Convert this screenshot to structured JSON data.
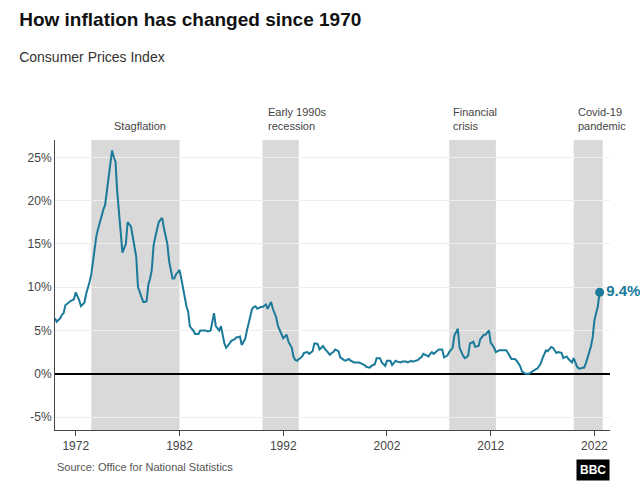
{
  "chart_data": {
    "type": "line",
    "title": "How inflation has changed since 1970",
    "subtitle": "Consumer Prices Index",
    "source": "Source: Office for National Statistics",
    "logo": "BBC",
    "annotation": "9.4%",
    "color": "#1a7a9a",
    "grid": true,
    "xlim": [
      1970,
      2023.5
    ],
    "xticks": [
      1972,
      1982,
      1992,
      2002,
      2012,
      2022
    ],
    "ylim": [
      -6.5,
      27
    ],
    "yticks": [
      {
        "value": -5,
        "label": "-5%"
      },
      {
        "value": 0,
        "label": "0%"
      },
      {
        "value": 5,
        "label": "5%"
      },
      {
        "value": 10,
        "label": "10%"
      },
      {
        "value": 15,
        "label": "15%"
      },
      {
        "value": 20,
        "label": "20%"
      },
      {
        "value": 25,
        "label": "25%"
      }
    ],
    "shaded_regions": [
      {
        "start": 1973.5,
        "end": 1982.0,
        "label": "Stagflation",
        "label_x": 1975.5,
        "color": "#d9d9d9"
      },
      {
        "start": 1990.0,
        "end": 1993.5,
        "label": "Early 1990s\nrecession",
        "label_x": 1990.3,
        "color": "#d9d9d9"
      },
      {
        "start": 2008.0,
        "end": 2012.5,
        "label": "Financial\ncrisis",
        "label_x": 2008.2,
        "color": "#d9d9d9"
      },
      {
        "start": 2020.0,
        "end": 2022.8,
        "label": "Covid-19\npandemic",
        "label_x": 2020.2,
        "color": "#d9d9d9"
      }
    ],
    "x": [
      1970.0,
      1970.17,
      1970.33,
      1970.5,
      1970.67,
      1970.83,
      1971.0,
      1971.17,
      1971.33,
      1971.5,
      1971.67,
      1971.83,
      1972.0,
      1972.17,
      1972.33,
      1972.5,
      1972.67,
      1972.83,
      1973.0,
      1973.17,
      1973.33,
      1973.5,
      1973.67,
      1973.83,
      1974.0,
      1974.17,
      1974.33,
      1974.5,
      1974.67,
      1974.83,
      1975.0,
      1975.17,
      1975.33,
      1975.5,
      1975.67,
      1975.83,
      1976.0,
      1976.17,
      1976.33,
      1976.5,
      1976.67,
      1976.83,
      1977.0,
      1977.17,
      1977.33,
      1977.5,
      1977.67,
      1977.83,
      1978.0,
      1978.17,
      1978.33,
      1978.5,
      1978.67,
      1978.83,
      1979.0,
      1979.17,
      1979.33,
      1979.5,
      1979.67,
      1979.83,
      1980.0,
      1980.17,
      1980.33,
      1980.5,
      1980.67,
      1980.83,
      1981.0,
      1981.17,
      1981.33,
      1981.5,
      1981.67,
      1981.83,
      1982.0,
      1982.17,
      1982.33,
      1982.5,
      1982.67,
      1982.83,
      1983.0,
      1983.17,
      1983.33,
      1983.5,
      1983.67,
      1983.83,
      1984.0,
      1984.17,
      1984.33,
      1984.5,
      1984.67,
      1984.83,
      1985.0,
      1985.17,
      1985.33,
      1985.5,
      1985.67,
      1985.83,
      1986.0,
      1986.17,
      1986.33,
      1986.5,
      1986.67,
      1986.83,
      1987.0,
      1987.17,
      1987.33,
      1987.5,
      1987.67,
      1987.83,
      1988.0,
      1988.17,
      1988.33,
      1988.5,
      1988.67,
      1988.83,
      1989.0,
      1989.17,
      1989.33,
      1989.5,
      1989.67,
      1989.83,
      1990.0,
      1990.17,
      1990.33,
      1990.5,
      1990.67,
      1990.83,
      1991.0,
      1991.17,
      1991.33,
      1991.5,
      1991.67,
      1991.83,
      1992.0,
      1992.17,
      1992.33,
      1992.5,
      1992.67,
      1992.83,
      1993.0,
      1993.17,
      1993.33,
      1993.5,
      1993.67,
      1993.83,
      1994.0,
      1994.17,
      1994.33,
      1994.5,
      1994.67,
      1994.83,
      1995.0,
      1995.17,
      1995.33,
      1995.5,
      1995.67,
      1995.83,
      1996.0,
      1996.17,
      1996.33,
      1996.5,
      1996.67,
      1996.83,
      1997.0,
      1997.17,
      1997.33,
      1997.5,
      1997.67,
      1997.83,
      1998.0,
      1998.17,
      1998.33,
      1998.5,
      1998.67,
      1998.83,
      1999.0,
      1999.17,
      1999.33,
      1999.5,
      1999.67,
      1999.83,
      2000.0,
      2000.17,
      2000.33,
      2000.5,
      2000.67,
      2000.83,
      2001.0,
      2001.17,
      2001.33,
      2001.5,
      2001.67,
      2001.83,
      2002.0,
      2002.17,
      2002.33,
      2002.5,
      2002.67,
      2002.83,
      2003.0,
      2003.17,
      2003.33,
      2003.5,
      2003.67,
      2003.83,
      2004.0,
      2004.17,
      2004.33,
      2004.5,
      2004.67,
      2004.83,
      2005.0,
      2005.17,
      2005.33,
      2005.5,
      2005.67,
      2005.83,
      2006.0,
      2006.17,
      2006.33,
      2006.5,
      2006.67,
      2006.83,
      2007.0,
      2007.17,
      2007.33,
      2007.5,
      2007.67,
      2007.83,
      2008.0,
      2008.17,
      2008.33,
      2008.5,
      2008.67,
      2008.83,
      2009.0,
      2009.17,
      2009.33,
      2009.5,
      2009.67,
      2009.83,
      2010.0,
      2010.17,
      2010.33,
      2010.5,
      2010.67,
      2010.83,
      2011.0,
      2011.17,
      2011.33,
      2011.5,
      2011.67,
      2011.83,
      2012.0,
      2012.17,
      2012.33,
      2012.5,
      2012.67,
      2012.83,
      2013.0,
      2013.17,
      2013.33,
      2013.5,
      2013.67,
      2013.83,
      2014.0,
      2014.17,
      2014.33,
      2014.5,
      2014.67,
      2014.83,
      2015.0,
      2015.17,
      2015.33,
      2015.5,
      2015.67,
      2015.83,
      2016.0,
      2016.17,
      2016.33,
      2016.5,
      2016.67,
      2016.83,
      2017.0,
      2017.17,
      2017.33,
      2017.5,
      2017.67,
      2017.83,
      2018.0,
      2018.17,
      2018.33,
      2018.5,
      2018.67,
      2018.83,
      2019.0,
      2019.17,
      2019.33,
      2019.5,
      2019.67,
      2019.83,
      2020.0,
      2020.17,
      2020.33,
      2020.5,
      2020.67,
      2020.83,
      2021.0,
      2021.17,
      2021.33,
      2021.5,
      2021.67,
      2021.83,
      2022.0,
      2022.17,
      2022.33,
      2022.5
    ],
    "values": [
      6.4,
      6.0,
      6.2,
      6.4,
      6.8,
      7.0,
      7.9,
      8.1,
      8.3,
      8.4,
      8.5,
      8.6,
      9.4,
      9.0,
      8.5,
      7.8,
      8.0,
      8.2,
      9.2,
      9.8,
      10.6,
      11.5,
      13.0,
      14.5,
      16.0,
      16.8,
      17.5,
      18.5,
      19.0,
      19.5,
      21.0,
      22.5,
      24.2,
      25.8,
      25.0,
      24.5,
      21.0,
      18.5,
      16.5,
      14.0,
      14.5,
      15.0,
      17.5,
      17.2,
      17.0,
      15.8,
      14.5,
      13.5,
      10.0,
      9.5,
      9.0,
      8.3,
      8.3,
      8.4,
      10.3,
      11.0,
      12.0,
      14.8,
      15.8,
      16.5,
      17.5,
      17.8,
      18.0,
      16.8,
      16.0,
      15.0,
      13.0,
      12.0,
      11.0,
      11.0,
      11.5,
      11.7,
      12.0,
      11.0,
      10.0,
      8.5,
      7.8,
      7.2,
      5.5,
      5.2,
      5.0,
      4.6,
      4.6,
      4.6,
      5.0,
      5.0,
      5.0,
      5.0,
      4.9,
      4.9,
      5.0,
      6.0,
      7.0,
      5.5,
      5.2,
      5.0,
      5.5,
      4.5,
      3.5,
      3.0,
      3.2,
      3.5,
      3.8,
      3.9,
      4.0,
      4.2,
      4.2,
      4.3,
      3.3,
      3.7,
      4.0,
      5.0,
      5.8,
      6.4,
      7.5,
      7.7,
      7.8,
      7.5,
      7.6,
      7.7,
      7.7,
      7.9,
      8.0,
      7.5,
      8.0,
      8.3,
      7.5,
      7.0,
      6.5,
      5.5,
      5.0,
      4.5,
      4.1,
      4.3,
      4.5,
      3.7,
      3.3,
      3.0,
      1.9,
      1.6,
      1.5,
      1.7,
      1.9,
      2.0,
      2.4,
      2.5,
      2.5,
      2.3,
      2.5,
      2.6,
      3.5,
      3.5,
      3.4,
      2.8,
      3.0,
      3.2,
      2.9,
      2.7,
      2.5,
      2.2,
      2.4,
      2.5,
      2.8,
      2.7,
      2.6,
      1.9,
      1.7,
      1.6,
      1.5,
      1.6,
      1.7,
      1.5,
      1.4,
      1.3,
      1.3,
      1.3,
      1.3,
      1.2,
      1.1,
      1.0,
      0.8,
      0.7,
      0.7,
      0.9,
      1.0,
      1.1,
      1.8,
      1.8,
      1.8,
      1.3,
      1.1,
      0.9,
      1.5,
      1.5,
      1.5,
      1.0,
      1.2,
      1.5,
      1.4,
      1.3,
      1.3,
      1.4,
      1.4,
      1.4,
      1.3,
      1.4,
      1.5,
      1.4,
      1.5,
      1.5,
      1.6,
      1.8,
      1.9,
      2.3,
      2.2,
      2.1,
      2.0,
      2.3,
      2.5,
      2.3,
      2.5,
      2.7,
      2.8,
      2.8,
      2.8,
      1.9,
      2.0,
      2.1,
      2.5,
      2.8,
      3.0,
      4.4,
      4.8,
      5.2,
      3.0,
      2.5,
      2.1,
      1.8,
      1.9,
      2.1,
      3.5,
      3.6,
      3.7,
      3.1,
      3.2,
      3.2,
      4.0,
      4.2,
      4.5,
      4.5,
      4.8,
      5.0,
      3.6,
      3.3,
      3.0,
      2.5,
      2.6,
      2.7,
      2.7,
      2.7,
      2.7,
      2.7,
      2.4,
      2.1,
      1.7,
      1.7,
      1.7,
      1.5,
      1.2,
      0.9,
      0.3,
      0.1,
      0.0,
      0.0,
      0.0,
      0.1,
      0.3,
      0.4,
      0.5,
      0.6,
      0.9,
      1.2,
      1.8,
      2.3,
      2.7,
      2.6,
      2.8,
      3.1,
      3.0,
      2.7,
      2.4,
      2.5,
      2.4,
      2.4,
      1.8,
      1.9,
      2.0,
      1.7,
      1.5,
      1.3,
      1.8,
      1.2,
      0.8,
      0.6,
      0.6,
      0.7,
      0.7,
      1.2,
      2.0,
      2.5,
      3.2,
      4.2,
      6.2,
      7.0,
      7.8,
      9.4
    ]
  }
}
